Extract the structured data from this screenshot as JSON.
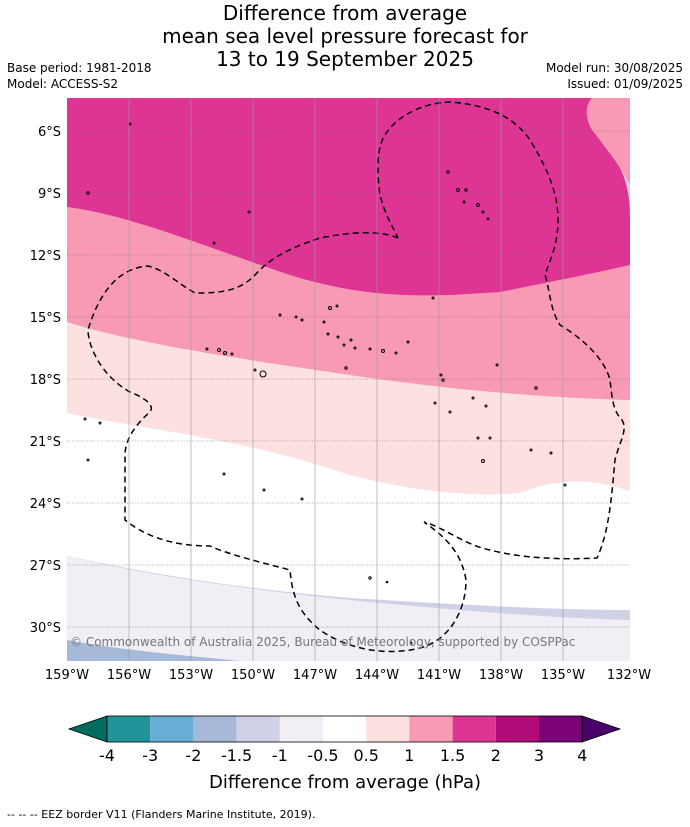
{
  "title": {
    "line1": "Difference from average",
    "line2": "mean sea level pressure forecast for",
    "line3": "13 to 19 September 2025"
  },
  "meta_left": {
    "base_period": "Base period: 1981-2018",
    "model": "Model: ACCESS-S2"
  },
  "meta_right": {
    "model_run": "Model run: 30/08/2025",
    "issued": "Issued: 01/09/2025"
  },
  "map": {
    "lat_labels": [
      "6°S",
      "9°S",
      "12°S",
      "15°S",
      "18°S",
      "21°S",
      "24°S",
      "27°S",
      "30°S"
    ],
    "lon_labels": [
      "159°W",
      "156°W",
      "153°W",
      "150°W",
      "147°W",
      "144°W",
      "141°W",
      "138°W",
      "135°W",
      "132°W"
    ],
    "copyright": "© Commonwealth of Australia 2025, Bureau of Meteorology, supported by COSPPac"
  },
  "colorbar": {
    "ticks": [
      "-4",
      "-3",
      "-2",
      "-1.5",
      "-1",
      "-0.5",
      "0.5",
      "1",
      "1.5",
      "2",
      "3",
      "4"
    ],
    "colors": {
      "lt_-4": "#006b5f",
      "-4_-3": "#20939b",
      "-3_-2": "#67add4",
      "-2_-1.5": "#a7b9d8",
      "-1.5_-1": "#cfd1e6",
      "-1_-0.5": "#f2eef5",
      "-0.5_0.5": "#ffffff",
      "0.5_1": "#fde0e0",
      "1_1.5": "#f99ab4",
      "1.5_2": "#de3594",
      "2_3": "#b30a7a",
      "3_4": "#7a0177",
      "gt_4": "#4a006a"
    },
    "label": "Difference from average (hPa)"
  },
  "footer": "-- -- -- EEZ border V11 (Flanders Marine Institute, 2019)."
}
